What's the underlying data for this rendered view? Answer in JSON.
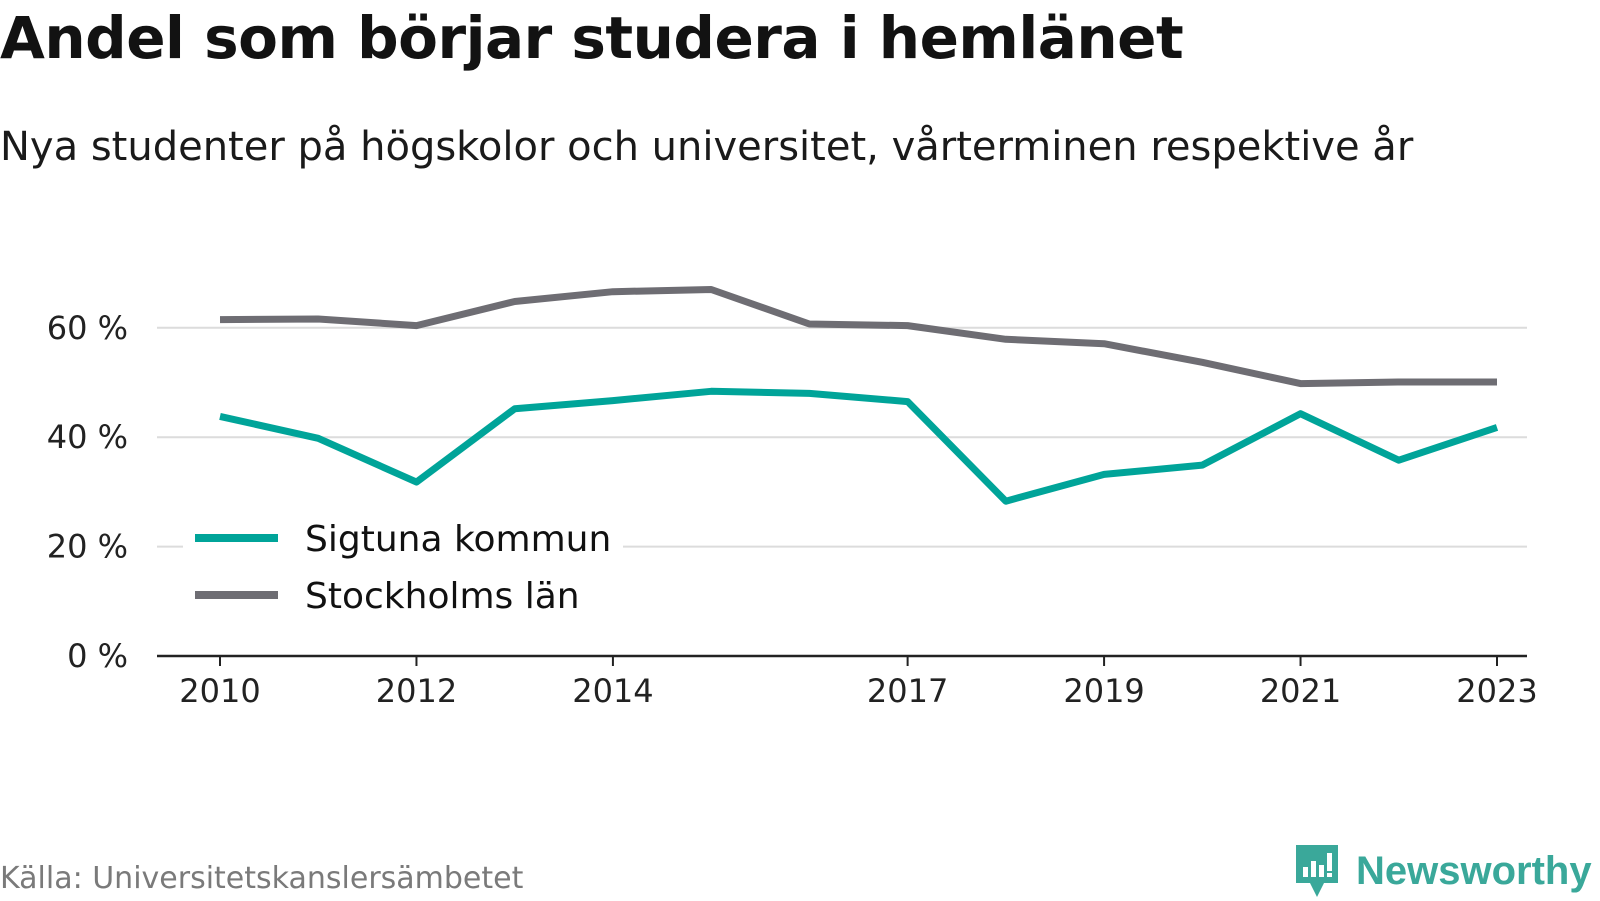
{
  "title": "Andel som börjar studera i hemlänet",
  "subtitle": "Nya studenter på högskolor och universitet, vårterminen respektive år",
  "source": "Källa: Universitetskanslersämbetet",
  "brand": {
    "name": "Newsworthy",
    "icon": "newsworthy-logo-icon",
    "color": "#3aa89a"
  },
  "chart_data": {
    "type": "line",
    "x": [
      2010,
      2011,
      2012,
      2013,
      2014,
      2015,
      2016,
      2017,
      2018,
      2019,
      2020,
      2021,
      2022,
      2023
    ],
    "x_tick_labels": [
      "2010",
      "2012",
      "2014",
      "2017",
      "2019",
      "2021",
      "2023"
    ],
    "x_tick_values": [
      2010,
      2012,
      2014,
      2017,
      2019,
      2021,
      2023
    ],
    "y_ticks": [
      0,
      20,
      40,
      60
    ],
    "y_tick_labels": [
      "0 %",
      "20 %",
      "40 %",
      "60 %"
    ],
    "ylim": [
      0,
      70
    ],
    "grid": true,
    "legend_position": "bottom-left",
    "series": [
      {
        "name": "Sigtuna kommun",
        "color": "#00a499",
        "values": [
          43.8,
          39.8,
          31.8,
          45.2,
          46.7,
          48.4,
          48.0,
          46.5,
          28.3,
          33.2,
          34.9,
          44.3,
          35.8,
          41.8
        ]
      },
      {
        "name": "Stockholms län",
        "color": "#6e6d73",
        "values": [
          61.5,
          61.6,
          60.4,
          64.8,
          66.6,
          67.0,
          60.7,
          60.4,
          57.9,
          57.1,
          53.7,
          49.8,
          50.1,
          50.1
        ]
      }
    ]
  }
}
